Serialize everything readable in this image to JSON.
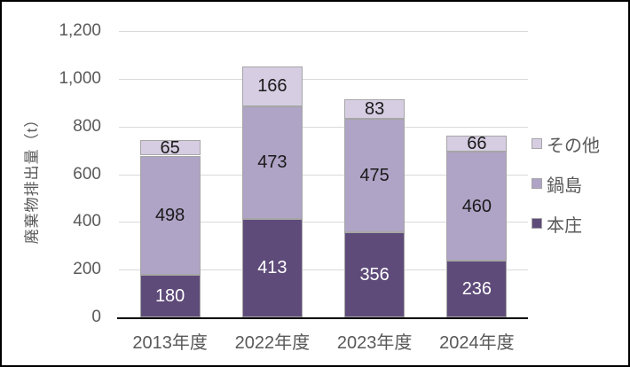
{
  "chart_data": {
    "type": "bar",
    "subtype": "stacked-column",
    "title": "",
    "ylabel": "廃棄物排出量（t）",
    "xlabel": "",
    "ylim": [
      0,
      1200
    ],
    "grid": true,
    "legend_position": "right",
    "categories": [
      "2013年度",
      "2022年度",
      "2023年度",
      "2024年度"
    ],
    "series": [
      {
        "name": "本庄",
        "color": "#5E4B79",
        "label_color": "#FFFFFF",
        "values": [
          180,
          413,
          356,
          236
        ]
      },
      {
        "name": "鍋島",
        "color": "#AFA3C6",
        "label_color": "#1A1A1A",
        "values": [
          498,
          473,
          475,
          460
        ]
      },
      {
        "name": "その他",
        "color": "#D6CDE2",
        "label_color": "#1A1A1A",
        "values": [
          65,
          166,
          83,
          66
        ]
      }
    ],
    "stack_totals": [
      743,
      1052,
      914,
      762
    ],
    "y_ticks": [
      {
        "value": 0,
        "label": "0"
      },
      {
        "value": 200,
        "label": "200"
      },
      {
        "value": 400,
        "label": "400"
      },
      {
        "value": 600,
        "label": "600"
      },
      {
        "value": 800,
        "label": "800"
      },
      {
        "value": 1000,
        "label": "1,000"
      },
      {
        "value": 1200,
        "label": "1,200"
      }
    ],
    "gridline_values": [
      200,
      400,
      600,
      800,
      1000,
      1200
    ],
    "legend": [
      {
        "label": "その他",
        "color": "#D6CDE2"
      },
      {
        "label": "鍋島",
        "color": "#AFA3C6"
      },
      {
        "label": "本庄",
        "color": "#5E4B79"
      }
    ],
    "colors": {
      "gridline": "#D9D9D9",
      "segment_border": "#A6A6A6",
      "axis_line": "#000000",
      "axis_text": "#595959"
    }
  }
}
